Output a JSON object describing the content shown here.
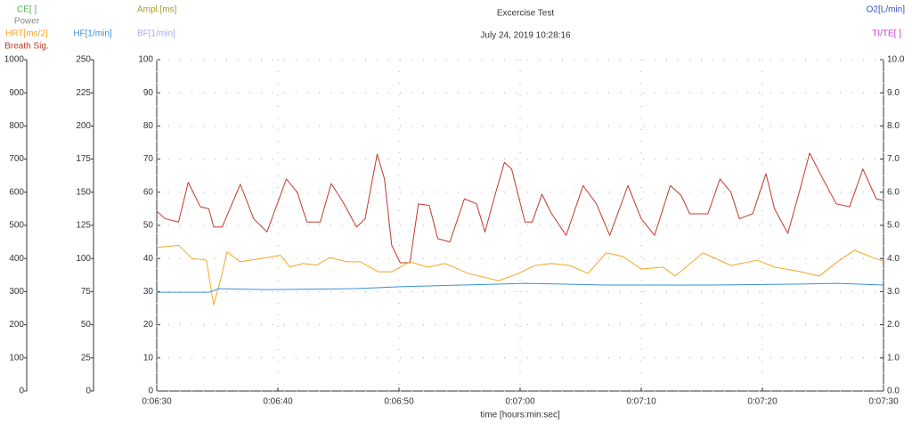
{
  "chart_data": {
    "type": "line",
    "title": "Excercise Test",
    "subtitle": "July 24, 2019 10:28:16",
    "xlabel": "time [hours:min:sec]",
    "labels": [
      {
        "text": "CE[ ]",
        "color": "#4caf50"
      },
      {
        "text": "Power",
        "color": "#888888"
      },
      {
        "text": "Ampl.[ms]",
        "color": "#a89a30"
      },
      {
        "text": "BF[1/min]",
        "color": "#a9a6f0"
      },
      {
        "text": "O2[L/min]",
        "color": "#3050c0"
      },
      {
        "text": "TI/TE[ ]",
        "color": "#cc33cc"
      }
    ],
    "series": [
      {
        "name": "Breath Sig.",
        "color": "#c0392b",
        "x": [
          390,
          390.7,
          391.8,
          392.6,
          393.6,
          394.3,
          394.7,
          395.4,
          396.9,
          398,
          399.1,
          400.7,
          401.6,
          402.4,
          403.5,
          404.4,
          405.3,
          406.5,
          407.2,
          408.2,
          408.8,
          409.4,
          410.1,
          410.9,
          411.6,
          412.5,
          413.2,
          414.2,
          415.4,
          416.4,
          417.1,
          417.8,
          418.7,
          419.3,
          420.4,
          421,
          421.8,
          422.6,
          423.8,
          425.2,
          426.3,
          427.4,
          428.9,
          430,
          431.1,
          432.4,
          433.3,
          434,
          435.5,
          436.5,
          437.4,
          438.1,
          439.2,
          440.3,
          441,
          442.1,
          443,
          443.9,
          445,
          446.1,
          447.2,
          448.3,
          449.4,
          450
        ],
        "values": [
          54.3,
          52,
          51,
          63,
          55.6,
          55,
          49.5,
          49.5,
          62.4,
          52,
          48,
          64,
          60,
          51,
          51,
          62.6,
          57.5,
          49.5,
          52,
          71.5,
          64,
          44,
          38.7,
          38.7,
          56.5,
          56,
          46,
          45,
          58,
          56.5,
          48,
          57.5,
          69,
          67,
          51,
          51,
          59.4,
          53.5,
          47,
          62,
          56.5,
          47,
          62,
          52,
          47,
          62,
          59,
          53.5,
          53.5,
          64,
          60,
          52,
          53.5,
          65.6,
          55,
          47.6,
          59.4,
          71.8,
          64,
          56.5,
          55.6,
          67,
          58,
          57.5
        ]
      },
      {
        "name": "HRT[ms/2]",
        "color": "#f5a623",
        "x": [
          390,
          391.8,
          392.9,
          394.1,
          394.7,
          395.3,
          395.8,
          396.9,
          399.1,
          400.2,
          401,
          402.1,
          403.2,
          404.3,
          405.7,
          406.8,
          408.3,
          409.4,
          410.9,
          412.4,
          413.8,
          415.7,
          418.2,
          419.7,
          421.2,
          422.6,
          424.1,
          425.6,
          427.1,
          428.5,
          430,
          431.8,
          432.8,
          435.1,
          437.4,
          439.6,
          441,
          443.2,
          444.7,
          446.2,
          447.6,
          449.1,
          450
        ],
        "values": [
          43.3,
          44,
          40,
          39.5,
          26,
          34,
          42,
          39,
          40.3,
          41,
          37.4,
          38.5,
          38,
          40.3,
          39,
          39,
          36,
          36,
          39,
          37.4,
          38.5,
          35.5,
          33.3,
          35.2,
          37.9,
          38.5,
          37.9,
          35.5,
          41.7,
          40.6,
          36.8,
          37.4,
          34.7,
          41.7,
          37.9,
          39.5,
          37.4,
          36,
          34.7,
          39,
          42.5,
          40.3,
          39.2
        ]
      },
      {
        "name": "HF[1/min]",
        "color": "#3a8fd9",
        "x": [
          390,
          394.3,
          395.1,
          399.1,
          406.5,
          410.1,
          415.3,
          420.4,
          427.1,
          435.9,
          443.2,
          446.2,
          450
        ],
        "values": [
          29.8,
          29.8,
          30.9,
          30.6,
          30.9,
          31.5,
          32,
          32.5,
          32,
          32,
          32.3,
          32.5,
          32
        ]
      }
    ],
    "xlim": [
      390,
      450
    ],
    "xticks": [
      {
        "value": 390,
        "label": "0:06:30"
      },
      {
        "value": 400,
        "label": "0:06:40"
      },
      {
        "value": 410,
        "label": "0:06:50"
      },
      {
        "value": 420,
        "label": "0:07:00"
      },
      {
        "value": 430,
        "label": "0:07:10"
      },
      {
        "value": 440,
        "label": "0:07:20"
      },
      {
        "value": 450,
        "label": "0:07:30"
      }
    ],
    "ylim": [
      0,
      100
    ],
    "yticks": [
      0,
      10,
      20,
      30,
      40,
      50,
      60,
      70,
      80,
      90,
      100
    ],
    "left_axes": [
      {
        "ylim": [
          0,
          1000
        ],
        "yticks": [
          0,
          100,
          200,
          300,
          400,
          500,
          600,
          700,
          800,
          900,
          1000
        ]
      },
      {
        "ylim": [
          0,
          250
        ],
        "yticks": [
          0,
          25,
          50,
          75,
          100,
          125,
          150,
          175,
          200,
          225,
          250
        ]
      }
    ],
    "y2lim": [
      0,
      10
    ],
    "y2ticks": [
      {
        "value": 0,
        "label": "0.0"
      },
      {
        "value": 1,
        "label": "1.0"
      },
      {
        "value": 2,
        "label": "2.0"
      },
      {
        "value": 3,
        "label": "3.0"
      },
      {
        "value": 4,
        "label": "4.0"
      },
      {
        "value": 5,
        "label": "5.0"
      },
      {
        "value": 6,
        "label": "6.0"
      },
      {
        "value": 7,
        "label": "7.0"
      },
      {
        "value": 8,
        "label": "8.0"
      },
      {
        "value": 9,
        "label": "9.0"
      },
      {
        "value": 10,
        "label": "10.0"
      }
    ],
    "grid": true
  }
}
